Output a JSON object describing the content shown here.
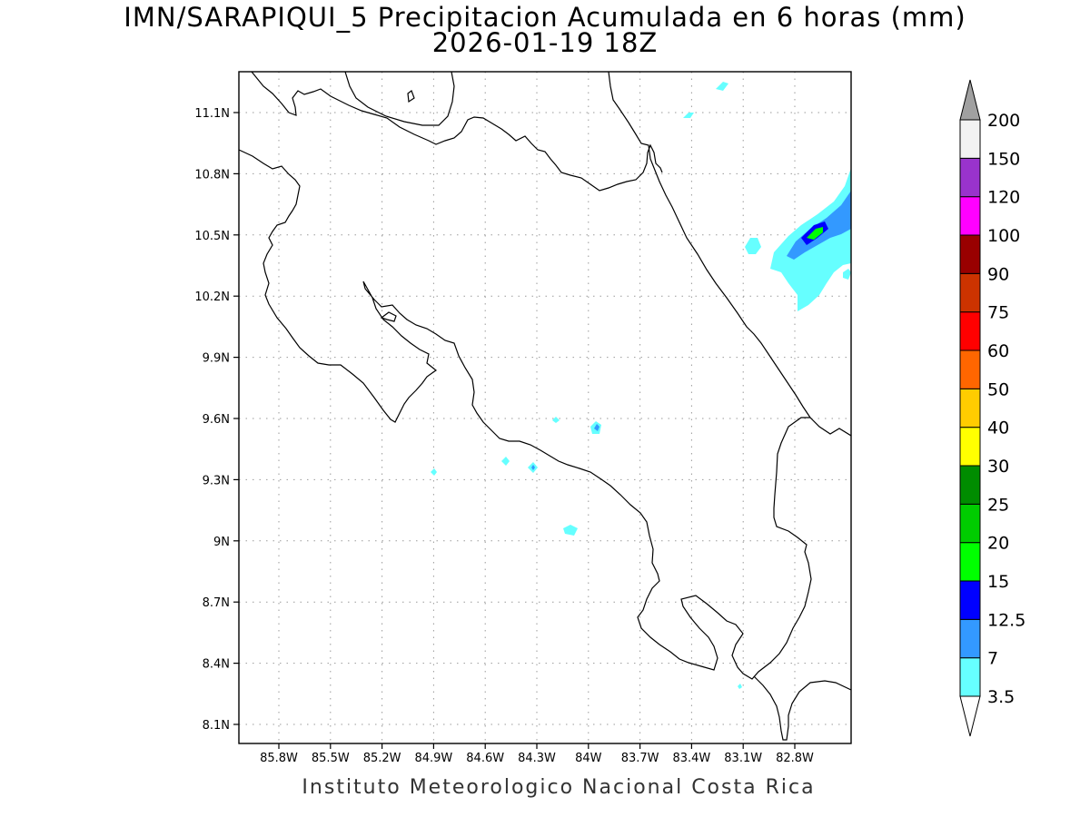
{
  "title": {
    "line1": "IMN/SARAPIQUI_5 Precipitacion Acumulada en 6 horas (mm)",
    "line2": "2026-01-19 18Z"
  },
  "footer": "Instituto Meteorologico Nacional Costa Rica",
  "map": {
    "lat_range": [
      8.0,
      11.3
    ],
    "lon_range": [
      -85.96,
      -82.95
    ],
    "lat_ticks": [
      {
        "value": 11.1,
        "label": "11.1N"
      },
      {
        "value": 10.8,
        "label": "10.8N"
      },
      {
        "value": 10.5,
        "label": "10.5N"
      },
      {
        "value": 10.2,
        "label": "10.2N"
      },
      {
        "value": 9.9,
        "label": "9.9N"
      },
      {
        "value": 9.6,
        "label": "9.6N"
      },
      {
        "value": 9.3,
        "label": "9.3N"
      },
      {
        "value": 9.0,
        "label": "9N"
      },
      {
        "value": 8.7,
        "label": "8.7N"
      },
      {
        "value": 8.4,
        "label": "8.4N"
      },
      {
        "value": 8.1,
        "label": "8.1N"
      }
    ],
    "lon_ticks": [
      {
        "value": -85.8,
        "label": "85.8W"
      },
      {
        "value": -85.5,
        "label": "85.5W"
      },
      {
        "value": -85.2,
        "label": "85.2W"
      },
      {
        "value": -84.9,
        "label": "84.9W"
      },
      {
        "value": -84.6,
        "label": "84.6W"
      },
      {
        "value": -84.3,
        "label": "84.3W"
      },
      {
        "value": -84.0,
        "label": "84W"
      },
      {
        "value": -83.7,
        "label": "83.7W"
      },
      {
        "value": -83.4,
        "label": "83.4W"
      },
      {
        "value": -83.1,
        "label": "83.1W"
      },
      {
        "value": -82.8,
        "label": "82.8W"
      }
    ],
    "grid": true
  },
  "colorbar": {
    "under_color": "#ffffff",
    "over_color": "#a0a0a0",
    "levels": [
      {
        "label": "3.5",
        "color": "#66ffff"
      },
      {
        "label": "7",
        "color": "#3399ff"
      },
      {
        "label": "12.5",
        "color": "#0000ff"
      },
      {
        "label": "15",
        "color": "#00ff00"
      },
      {
        "label": "20",
        "color": "#00cc00"
      },
      {
        "label": "25",
        "color": "#008c00"
      },
      {
        "label": "30",
        "color": "#ffff00"
      },
      {
        "label": "40",
        "color": "#ffcc00"
      },
      {
        "label": "50",
        "color": "#ff6600"
      },
      {
        "label": "60",
        "color": "#ff0000"
      },
      {
        "label": "75",
        "color": "#cc3300"
      },
      {
        "label": "90",
        "color": "#990000"
      },
      {
        "label": "100",
        "color": "#ff00ff"
      },
      {
        "label": "120",
        "color": "#9933cc"
      },
      {
        "label": "150",
        "color": "#f2f2f2"
      },
      {
        "label": "200",
        "color": ""
      }
    ]
  }
}
